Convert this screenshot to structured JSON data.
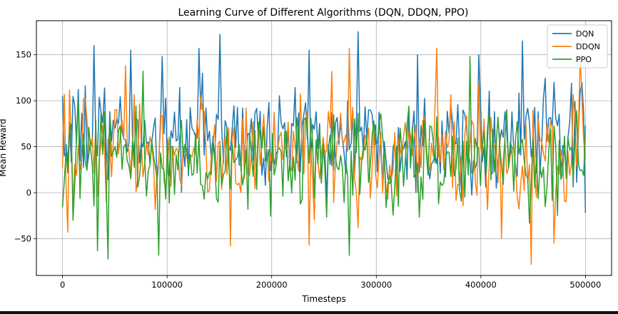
{
  "chart_data": {
    "type": "line",
    "title": "Learning Curve of Different Algorithms (DQN, DDQN, PPO)",
    "xlabel": "Timesteps",
    "ylabel": "Mean Reward",
    "xlim": [
      -25000,
      525000
    ],
    "ylim": [
      -90,
      187
    ],
    "xticks": [
      0,
      100000,
      200000,
      300000,
      400000,
      500000
    ],
    "yticks": [
      -50,
      0,
      50,
      100,
      150
    ],
    "grid": true,
    "legend_position": "top-right",
    "num_points": 300,
    "series": [
      {
        "name": "DQN",
        "color": "#1f77b4",
        "keypoints": [
          [
            0,
            105
          ],
          [
            30000,
            160
          ],
          [
            65000,
            155
          ],
          [
            95000,
            148
          ],
          [
            130000,
            157
          ],
          [
            150000,
            172
          ],
          [
            235000,
            155
          ],
          [
            282000,
            175
          ],
          [
            340000,
            150
          ],
          [
            398000,
            150
          ],
          [
            440000,
            165
          ],
          [
            500000,
            -22
          ]
        ]
      },
      {
        "name": "DDQN",
        "color": "#ff7f0e",
        "keypoints": [
          [
            2000,
            107
          ],
          [
            5000,
            -43
          ],
          [
            60000,
            138
          ],
          [
            160000,
            -58
          ],
          [
            235000,
            -57
          ],
          [
            275000,
            157
          ],
          [
            282000,
            -38
          ],
          [
            358000,
            157
          ],
          [
            420000,
            -50
          ],
          [
            448000,
            -78
          ],
          [
            470000,
            -55
          ],
          [
            495000,
            147
          ]
        ]
      },
      {
        "name": "PPO",
        "color": "#2ca02c",
        "keypoints": [
          [
            0,
            -16
          ],
          [
            33000,
            -63
          ],
          [
            44000,
            -72
          ],
          [
            77000,
            132
          ],
          [
            92000,
            -68
          ],
          [
            275000,
            -68
          ],
          [
            390000,
            148
          ],
          [
            500000,
            73
          ]
        ]
      }
    ],
    "band": {
      "DQN": {
        "mean": 60,
        "spread": 45
      },
      "DDQN": {
        "mean": 45,
        "spread": 50
      },
      "PPO": {
        "mean": 35,
        "spread": 45
      }
    }
  },
  "tick_labels": {
    "x": [
      "0",
      "100000",
      "200000",
      "300000",
      "400000",
      "500000"
    ],
    "y": [
      "−50",
      "0",
      "50",
      "100",
      "150"
    ]
  },
  "title": "Learning Curve of Different Algorithms (DQN, DDQN, PPO)",
  "xlabel": "Timesteps",
  "ylabel": "Mean Reward",
  "legend": [
    "DQN",
    "DDQN",
    "PPO"
  ]
}
